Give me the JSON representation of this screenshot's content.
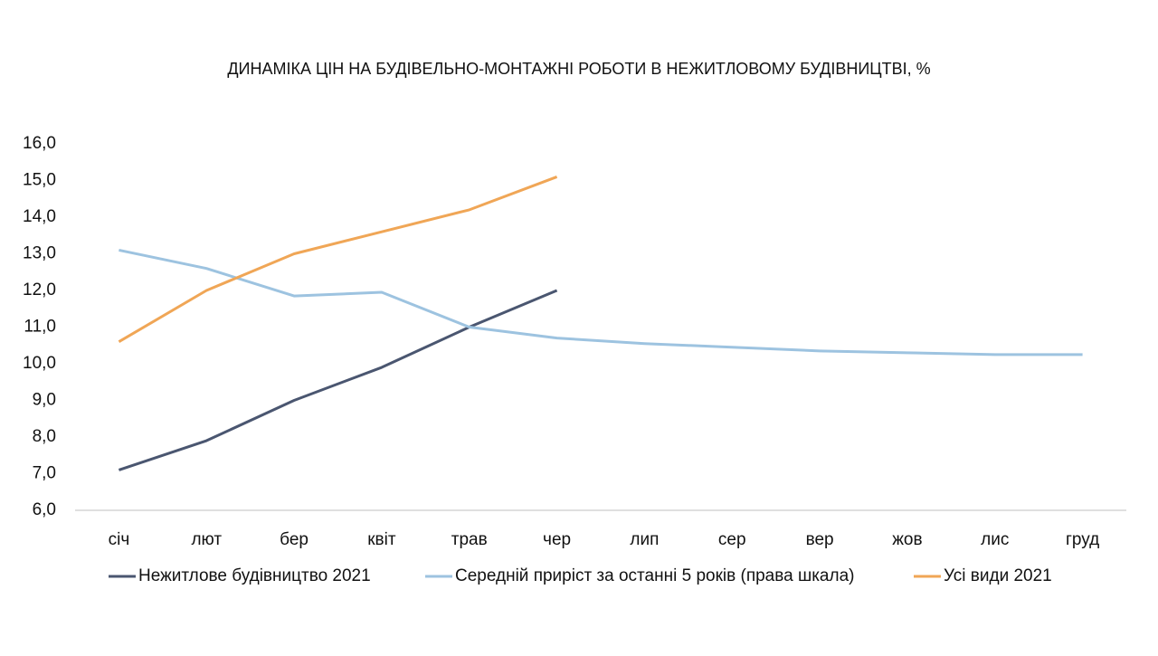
{
  "chart_data": {
    "type": "line",
    "title": "ДИНАМІКА ЦІН НА БУДІВЕЛЬНО-МОНТАЖНІ РОБОТИ В НЕЖИТЛОВОМУ БУДІВНИЦТВІ, %",
    "categories": [
      "січ",
      "лют",
      "бер",
      "квіт",
      "трав",
      "чер",
      "лип",
      "сер",
      "вер",
      "жов",
      "лис",
      "груд"
    ],
    "series": [
      {
        "name": "Нежитлове будівництво 2021",
        "color": "#4a5670",
        "values": [
          7.1,
          7.9,
          9.0,
          9.9,
          11.0,
          12.0,
          null,
          null,
          null,
          null,
          null,
          null
        ]
      },
      {
        "name": "Середній приріст за останні 5 років (права шкала)",
        "color": "#9dc3e0",
        "values": [
          13.1,
          12.6,
          11.85,
          11.95,
          11.0,
          10.7,
          10.55,
          10.45,
          10.35,
          10.3,
          10.25,
          10.25
        ]
      },
      {
        "name": "Усі види 2021",
        "color": "#f0a656",
        "values": [
          10.6,
          12.0,
          13.0,
          13.6,
          14.2,
          15.1,
          null,
          null,
          null,
          null,
          null,
          null
        ]
      }
    ],
    "ylim": [
      6,
      16
    ],
    "yticks": [
      {
        "value": 6,
        "label": "6,0"
      },
      {
        "value": 7,
        "label": "7,0"
      },
      {
        "value": 8,
        "label": "8,0"
      },
      {
        "value": 9,
        "label": "9,0"
      },
      {
        "value": 10,
        "label": "10,0"
      },
      {
        "value": 11,
        "label": "11,0"
      },
      {
        "value": 12,
        "label": "12,0"
      },
      {
        "value": 13,
        "label": "13,0"
      },
      {
        "value": 14,
        "label": "14,0"
      },
      {
        "value": 15,
        "label": "15,0"
      },
      {
        "value": 16,
        "label": "16,0"
      }
    ],
    "grid": false,
    "legend": "bottom"
  }
}
